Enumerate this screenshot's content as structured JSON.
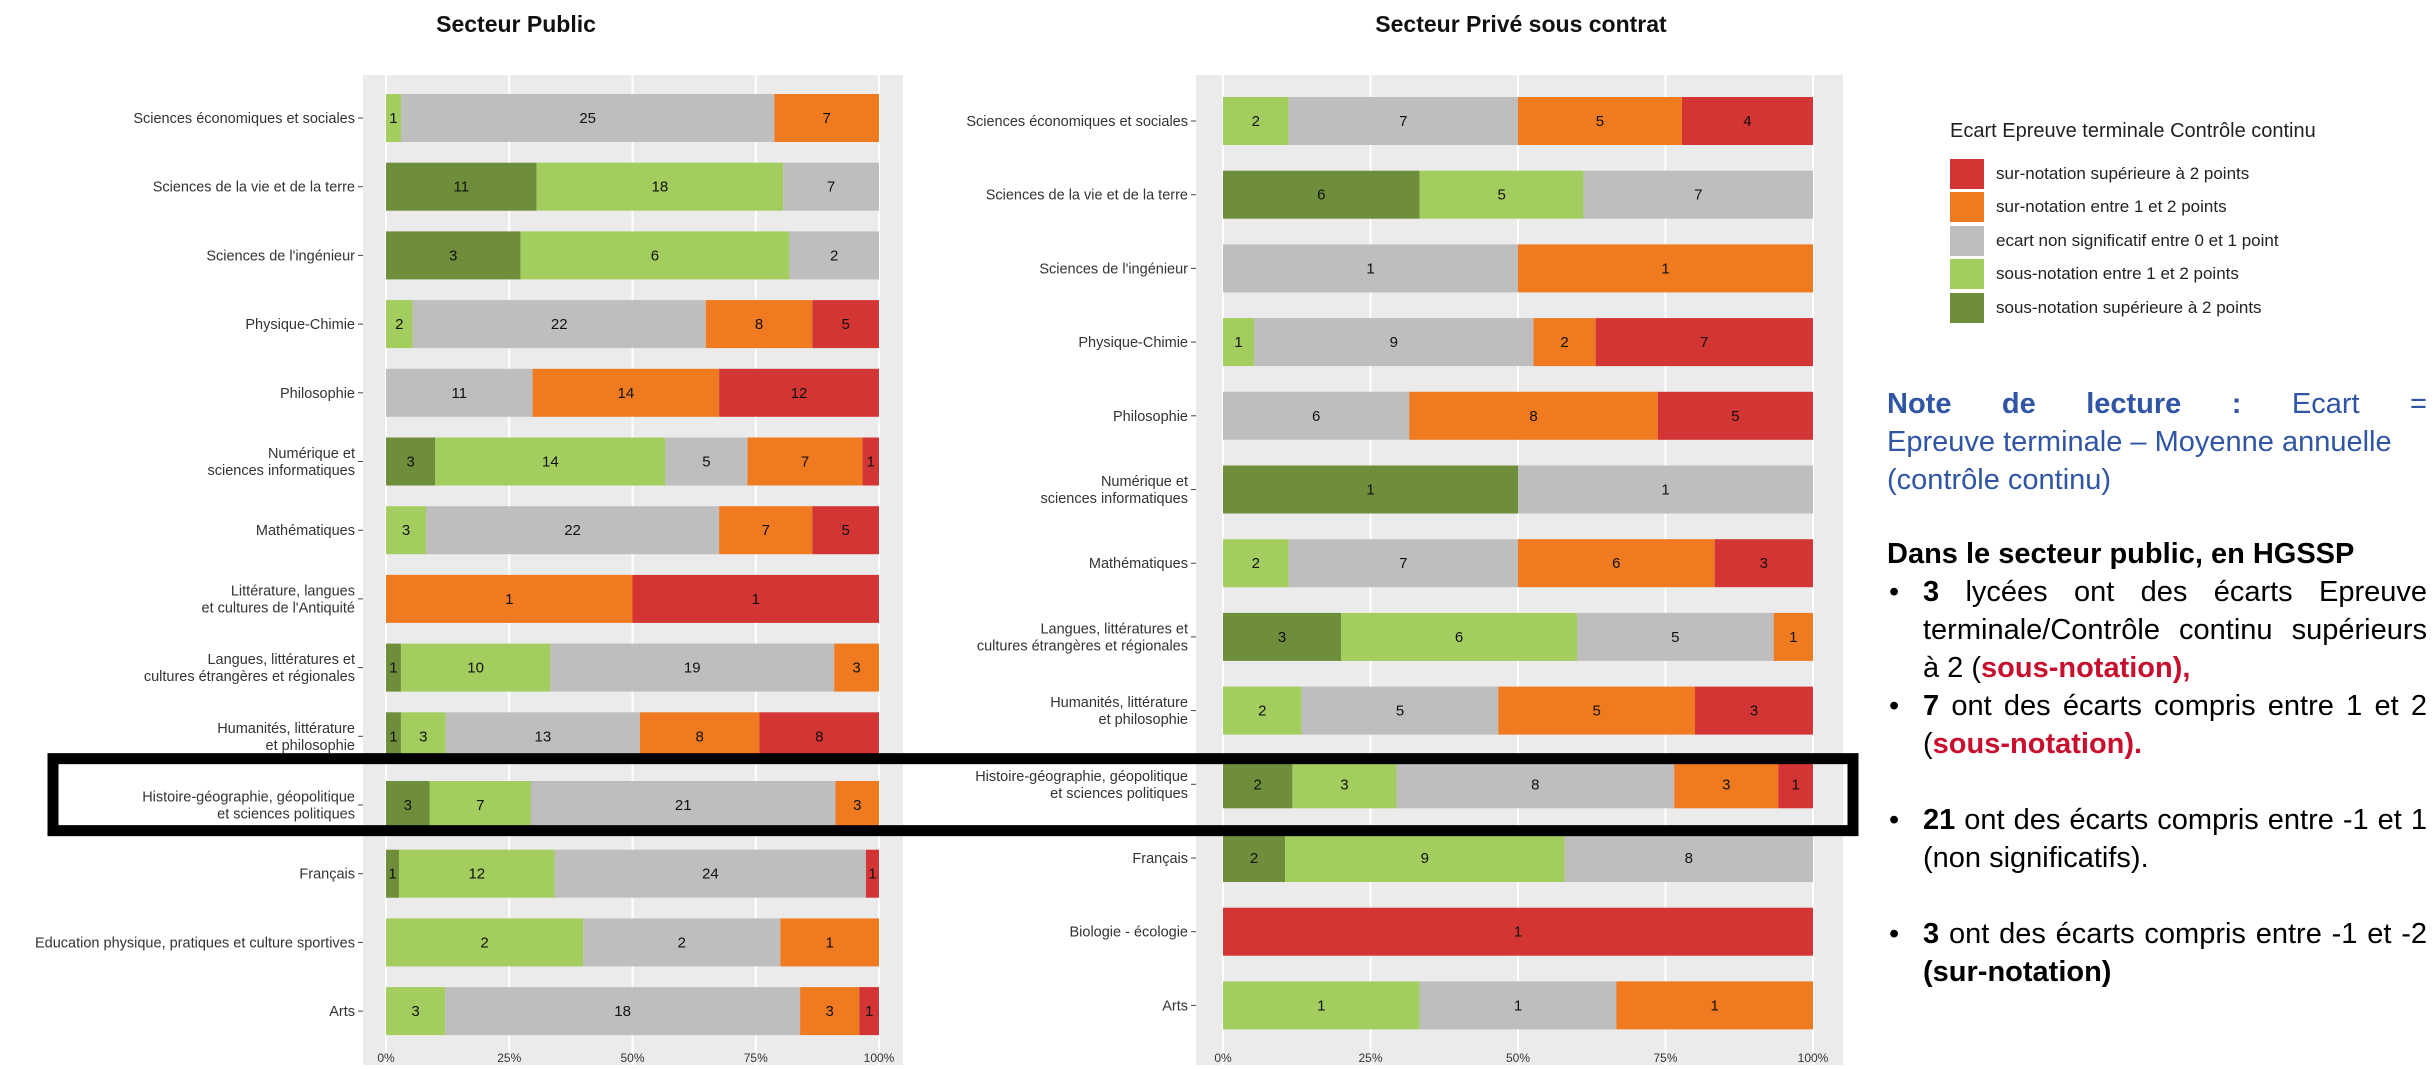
{
  "colors": {
    "dark_green": "#6F8E3C",
    "light_green": "#A3CD5E",
    "grey": "#BEBEBE",
    "orange": "#F07A20",
    "red": "#D33535",
    "panel_bg": "#EBEBEB",
    "highlight_box": "#000000"
  },
  "chart_data": [
    {
      "type": "bar",
      "orientation": "horizontal",
      "stacked": "percent",
      "title": "Secteur Public",
      "xticks": [
        "0%",
        "25%",
        "50%",
        "75%",
        "100%"
      ],
      "series_order": [
        "dark_green",
        "light_green",
        "grey",
        "orange",
        "red"
      ],
      "highlighted_category": "Histoire-géographie, géopolitique et sciences politiques",
      "categories": [
        {
          "label": [
            "Sciences économiques et sociales"
          ],
          "values": [
            0,
            1,
            25,
            7,
            0
          ]
        },
        {
          "label": [
            "Sciences de la vie et de la terre"
          ],
          "values": [
            11,
            18,
            7,
            0,
            0
          ]
        },
        {
          "label": [
            "Sciences de l'ingénieur"
          ],
          "values": [
            3,
            6,
            2,
            0,
            0
          ]
        },
        {
          "label": [
            "Physique-Chimie"
          ],
          "values": [
            0,
            2,
            22,
            8,
            5
          ]
        },
        {
          "label": [
            "Philosophie"
          ],
          "values": [
            0,
            0,
            11,
            14,
            12
          ]
        },
        {
          "label": [
            "Numérique et",
            "sciences informatiques"
          ],
          "values": [
            3,
            14,
            5,
            7,
            1
          ]
        },
        {
          "label": [
            "Mathématiques"
          ],
          "values": [
            0,
            3,
            22,
            7,
            5
          ]
        },
        {
          "label": [
            "Littérature, langues",
            "et cultures de l'Antiquité"
          ],
          "values": [
            0,
            0,
            0,
            1,
            1
          ]
        },
        {
          "label": [
            "Langues, littératures et",
            "cultures étrangères et régionales"
          ],
          "values": [
            1,
            10,
            19,
            3,
            0
          ]
        },
        {
          "label": [
            "Humanités, littérature",
            "et philosophie"
          ],
          "values": [
            1,
            3,
            13,
            8,
            8
          ]
        },
        {
          "label": [
            "Histoire-géographie, géopolitique",
            "et sciences politiques"
          ],
          "values": [
            3,
            7,
            21,
            3,
            0
          ]
        },
        {
          "label": [
            "Français"
          ],
          "values": [
            1,
            12,
            24,
            0,
            1
          ]
        },
        {
          "label": [
            "Education physique, pratiques et culture sportives"
          ],
          "values": [
            0,
            2,
            2,
            1,
            0
          ]
        },
        {
          "label": [
            "Arts"
          ],
          "values": [
            0,
            3,
            18,
            3,
            1
          ]
        }
      ]
    },
    {
      "type": "bar",
      "orientation": "horizontal",
      "stacked": "percent",
      "title": "Secteur Privé sous contrat",
      "xticks": [
        "0%",
        "25%",
        "50%",
        "75%",
        "100%"
      ],
      "series_order": [
        "dark_green",
        "light_green",
        "grey",
        "orange",
        "red"
      ],
      "highlighted_category": "Histoire-géographie, géopolitique et sciences politiques",
      "categories": [
        {
          "label": [
            "Sciences économiques et sociales"
          ],
          "values": [
            0,
            2,
            7,
            5,
            4
          ]
        },
        {
          "label": [
            "Sciences de la vie et de la terre"
          ],
          "values": [
            6,
            5,
            7,
            0,
            0
          ]
        },
        {
          "label": [
            "Sciences de l'ingénieur"
          ],
          "values": [
            0,
            0,
            1,
            1,
            0
          ]
        },
        {
          "label": [
            "Physique-Chimie"
          ],
          "values": [
            0,
            1,
            9,
            2,
            7
          ]
        },
        {
          "label": [
            "Philosophie"
          ],
          "values": [
            0,
            0,
            6,
            8,
            5
          ]
        },
        {
          "label": [
            "Numérique et",
            "sciences informatiques"
          ],
          "values": [
            1,
            0,
            1,
            0,
            0
          ]
        },
        {
          "label": [
            "Mathématiques"
          ],
          "values": [
            0,
            2,
            7,
            6,
            3
          ]
        },
        {
          "label": [
            "Langues, littératures et",
            "cultures étrangères et régionales"
          ],
          "values": [
            3,
            6,
            5,
            1,
            0
          ]
        },
        {
          "label": [
            "Humanités, littérature",
            "et philosophie"
          ],
          "values": [
            0,
            2,
            5,
            5,
            3
          ]
        },
        {
          "label": [
            "Histoire-géographie, géopolitique",
            "et sciences politiques"
          ],
          "values": [
            2,
            3,
            8,
            3,
            1
          ]
        },
        {
          "label": [
            "Français"
          ],
          "values": [
            2,
            9,
            8,
            0,
            0
          ]
        },
        {
          "label": [
            "Biologie - écologie"
          ],
          "values": [
            0,
            0,
            0,
            0,
            1
          ]
        },
        {
          "label": [
            "Arts"
          ],
          "values": [
            0,
            1,
            1,
            1,
            0
          ]
        }
      ]
    }
  ],
  "legend": {
    "title": "Ecart Epreuve terminale Contrôle continu",
    "items": [
      {
        "label": "sur-notation supérieure à 2 points",
        "color": "#D33535"
      },
      {
        "label": "sur-notation entre 1 et 2 points",
        "color": "#F07A20"
      },
      {
        "label": "ecart non significatif entre 0 et 1 point",
        "color": "#BEBEBE"
      },
      {
        "label": "sous-notation entre 1 et 2 points",
        "color": "#A3CD5E"
      },
      {
        "label": "sous-notation supérieure à 2 points",
        "color": "#6F8E3C"
      }
    ]
  },
  "note": {
    "title_bold": "Note de lecture :",
    "title_rest": "Ecart =",
    "body": "Epreuve terminale – Moyenne annuelle (contrôle continu)",
    "section_heading": "Dans le secteur public, en  HGSSP",
    "bullets": [
      {
        "num": "3",
        "text": " lycées ont des écarts Epreuve terminale/Contrôle continu supérieurs à 2 (",
        "em": "sous-notation),",
        "tail": ""
      },
      {
        "num": "7",
        "text": " ont des écarts compris entre 1 et 2 (",
        "em": "sous-notation).",
        "tail": ""
      },
      {
        "num": "21",
        "text": " ont des écarts compris entre -1 et 1 (non significatifs).",
        "em": "",
        "tail": ""
      },
      {
        "num": "3",
        "text": " ont des écarts compris entre -1 et -2 ",
        "em": "",
        "tail": "(sur-notation)"
      }
    ]
  }
}
